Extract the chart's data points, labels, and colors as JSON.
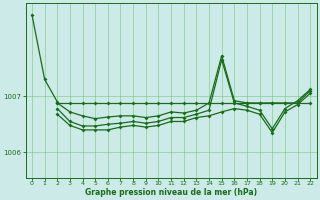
{
  "title": "Graphe pression niveau de la mer (hPa)",
  "bg_color": "#cceae8",
  "line_color": "#1a6b1a",
  "grid_color": "#66bb66",
  "xlim": [
    -0.5,
    22.5
  ],
  "ylim": [
    1005.55,
    1008.65
  ],
  "yticks": [
    1006,
    1007
  ],
  "xticks": [
    0,
    1,
    2,
    3,
    4,
    5,
    6,
    7,
    8,
    9,
    10,
    11,
    12,
    13,
    14,
    15,
    16,
    17,
    18,
    19,
    20,
    21,
    22
  ],
  "series1": [
    1008.45,
    1007.3,
    1006.9,
    null,
    null,
    null,
    null,
    null,
    null,
    null,
    null,
    null,
    null,
    null,
    null,
    null,
    null,
    null,
    null,
    null,
    null,
    null,
    null
  ],
  "series2": [
    null,
    null,
    1006.88,
    1006.88,
    1006.88,
    1006.88,
    1006.88,
    1006.88,
    1006.88,
    1006.88,
    1006.88,
    1006.88,
    1006.88,
    1006.88,
    1006.88,
    1006.88,
    1006.88,
    1006.88,
    1006.88,
    1006.88,
    1006.88,
    1006.88,
    1006.88
  ],
  "series3": [
    null,
    null,
    1006.88,
    1006.72,
    1006.65,
    1006.6,
    1006.63,
    1006.65,
    1006.65,
    1006.62,
    1006.65,
    1006.72,
    1006.7,
    1006.75,
    1006.88,
    1007.72,
    1006.92,
    1006.88,
    1006.88,
    1006.88,
    1006.88,
    1006.88,
    1007.1
  ],
  "series4": [
    null,
    null,
    1006.78,
    1006.55,
    1006.47,
    1006.47,
    1006.5,
    1006.52,
    1006.55,
    1006.52,
    1006.55,
    1006.62,
    1006.62,
    1006.68,
    1006.75,
    1007.65,
    1006.88,
    1006.82,
    1006.75,
    1006.42,
    1006.78,
    1006.92,
    1007.12
  ],
  "series5": [
    null,
    null,
    1006.68,
    1006.48,
    1006.4,
    1006.4,
    1006.4,
    1006.45,
    1006.48,
    1006.45,
    1006.48,
    1006.55,
    1006.55,
    1006.62,
    1006.65,
    1006.72,
    1006.78,
    1006.75,
    1006.68,
    1006.35,
    1006.72,
    1006.85,
    1007.05
  ]
}
